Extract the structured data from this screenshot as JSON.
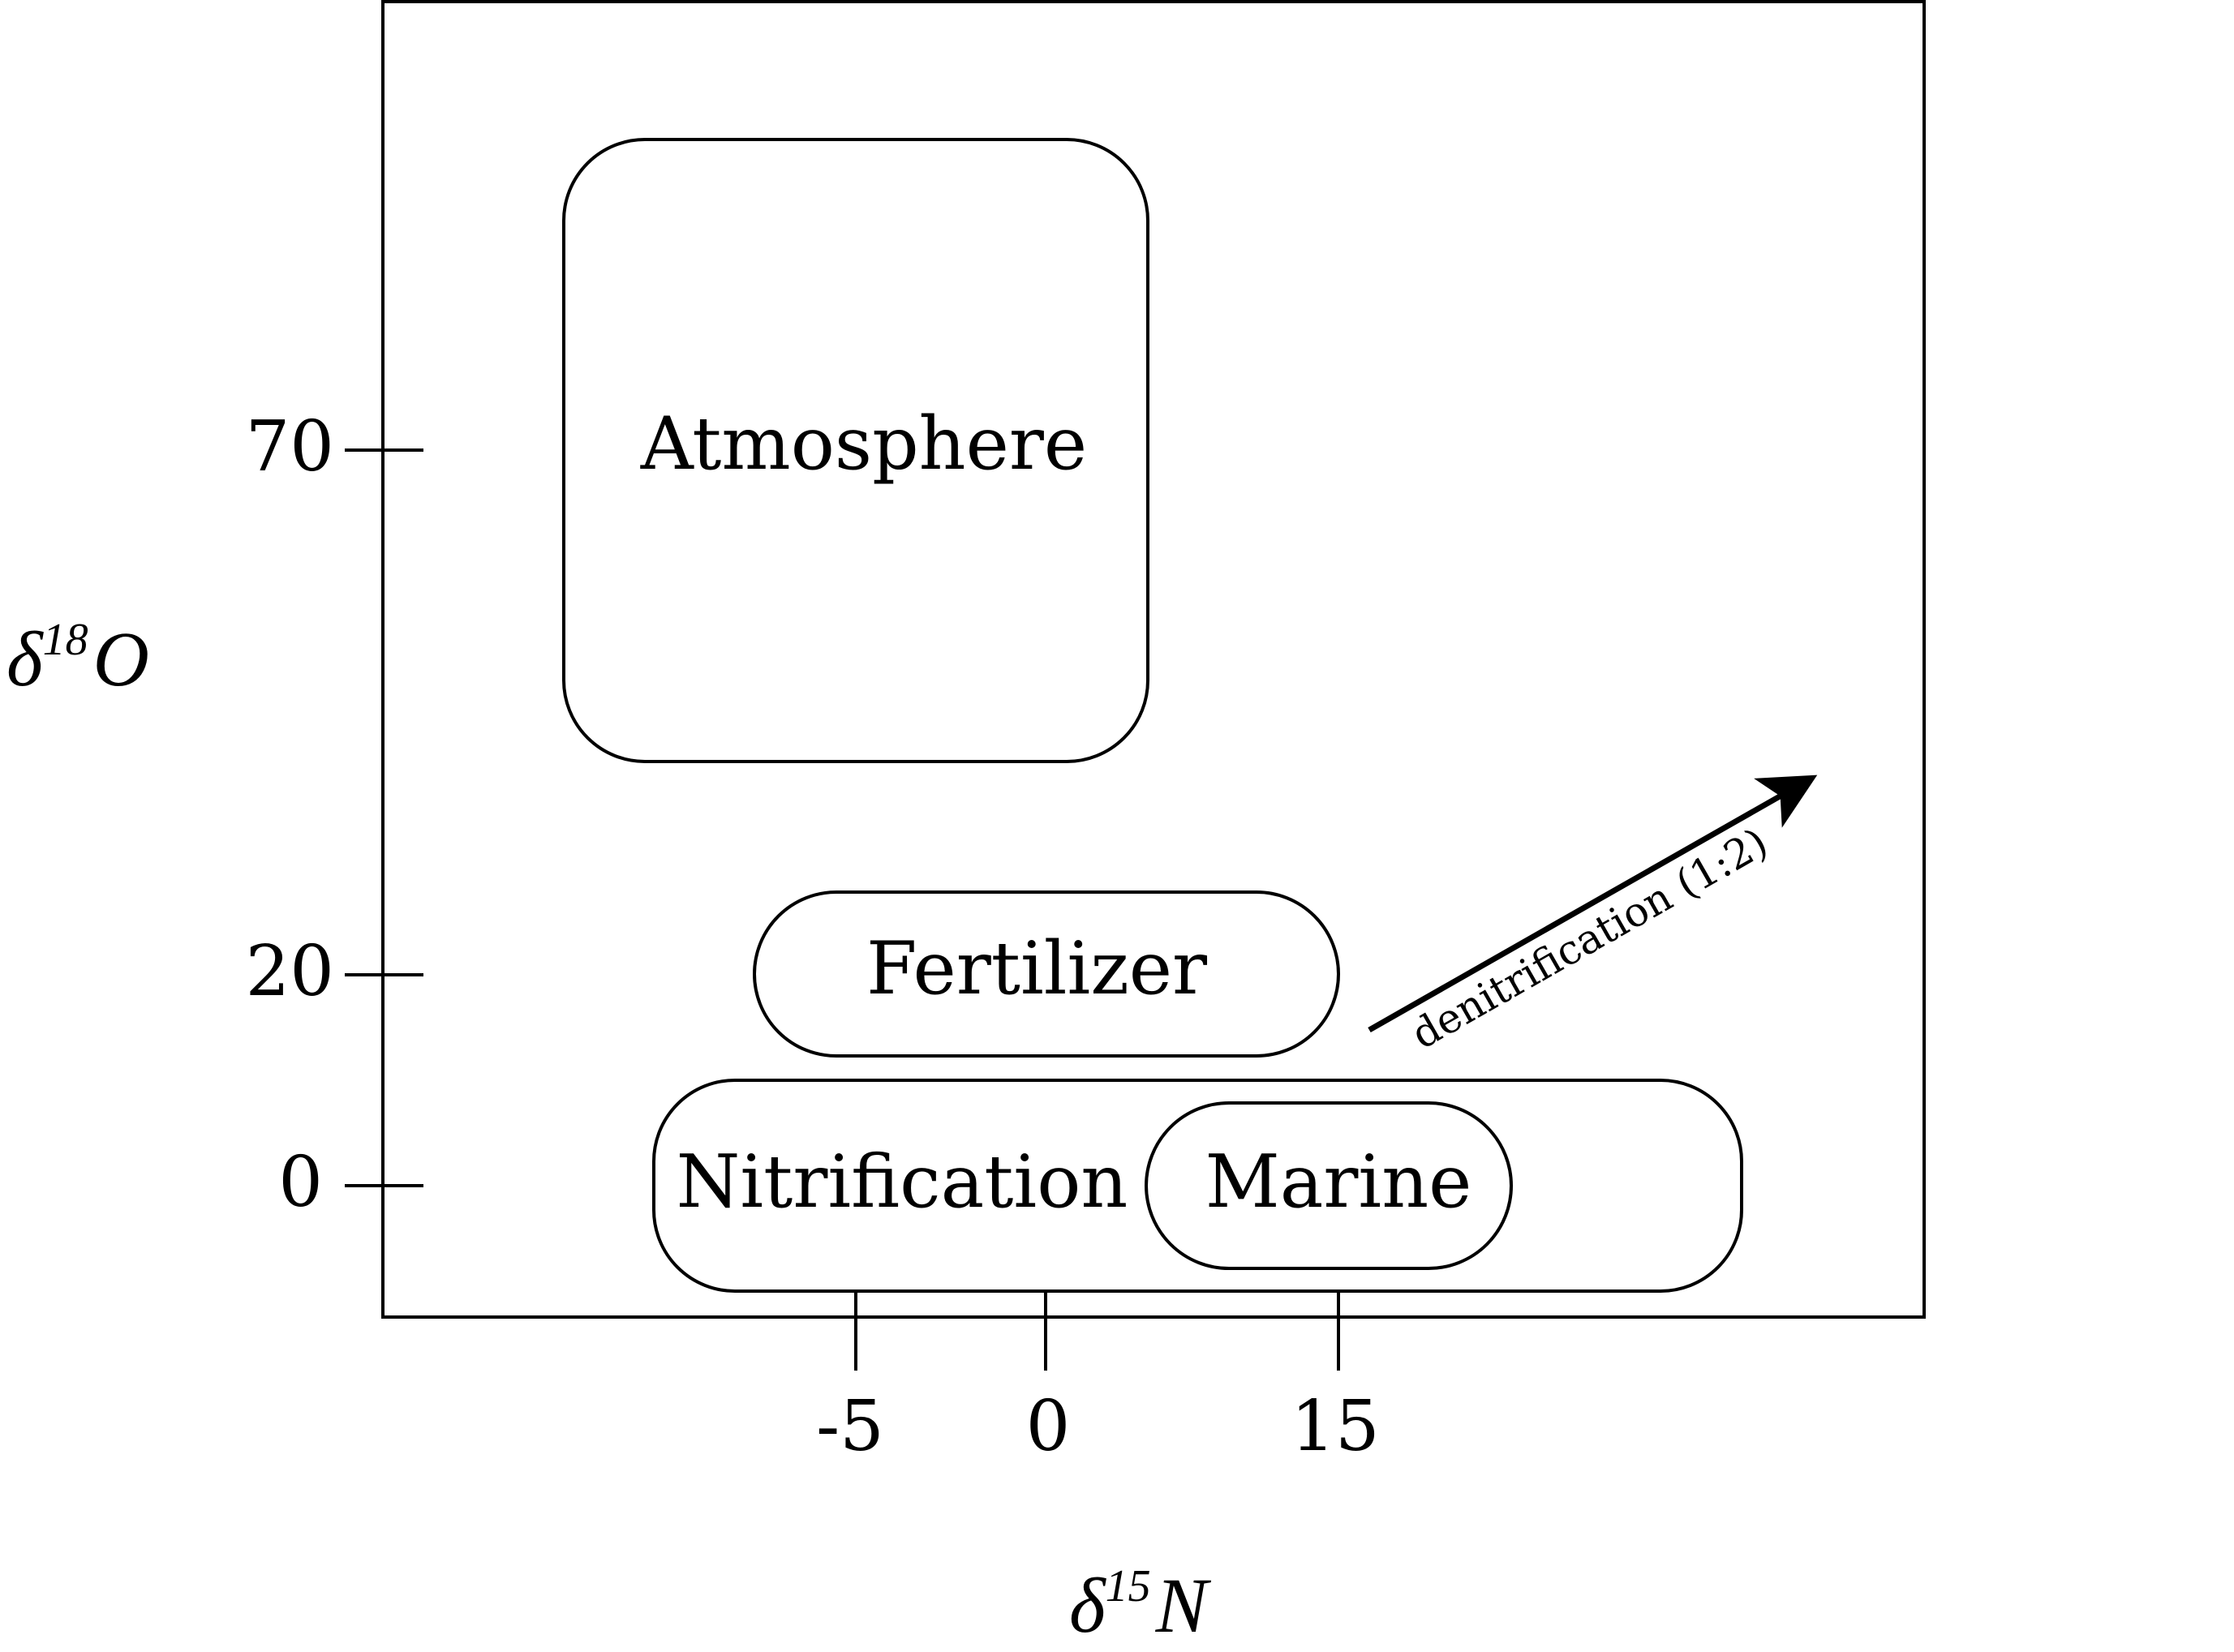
{
  "diagram": {
    "axes": {
      "x_label": {
        "symbol": "δ",
        "superscript": "15",
        "letter": "N"
      },
      "y_label": {
        "symbol": "δ",
        "superscript": "18",
        "letter": "O"
      },
      "x_ticks": [
        "-5",
        "0",
        "15"
      ],
      "y_ticks": [
        "70",
        "20",
        "0"
      ]
    },
    "regions": [
      {
        "id": "atmosphere",
        "label": "Atmosphere"
      },
      {
        "id": "fertilizer",
        "label": "Fertilizer"
      },
      {
        "id": "nitrification",
        "label": "Nitrification"
      },
      {
        "id": "marine",
        "label": "Marine"
      }
    ],
    "arrow": {
      "label": "denitrification (1:2)"
    }
  }
}
